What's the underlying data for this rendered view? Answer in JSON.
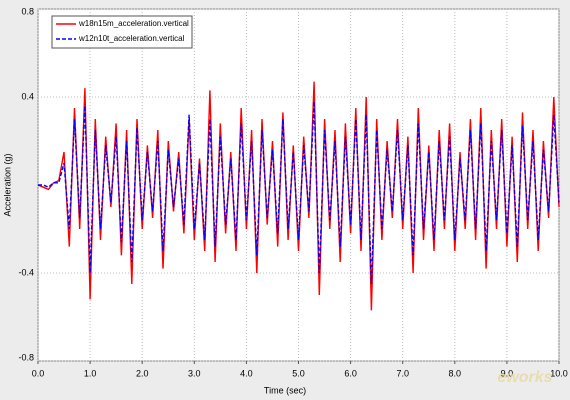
{
  "chart_data": {
    "type": "line",
    "xlabel": "Time (sec)",
    "ylabel": "Acceleration (g)",
    "watermark": "eworks",
    "x": [
      0,
      0.1,
      0.2,
      0.3,
      0.4,
      0.5,
      0.6,
      0.7,
      0.8,
      0.9,
      1,
      1.1,
      1.2,
      1.3,
      1.4,
      1.5,
      1.6,
      1.7,
      1.8,
      1.9,
      2,
      2.1,
      2.2,
      2.3,
      2.4,
      2.5,
      2.6,
      2.7,
      2.8,
      2.9,
      3,
      3.1,
      3.2,
      3.3,
      3.4,
      3.5,
      3.6,
      3.7,
      3.8,
      3.9,
      4,
      4.1,
      4.2,
      4.3,
      4.4,
      4.5,
      4.6,
      4.7,
      4.8,
      4.9,
      5,
      5.1,
      5.2,
      5.3,
      5.4,
      5.5,
      5.6,
      5.7,
      5.8,
      5.9,
      6,
      6.1,
      6.2,
      6.3,
      6.4,
      6.5,
      6.6,
      6.7,
      6.8,
      6.9,
      7,
      7.1,
      7.2,
      7.3,
      7.4,
      7.5,
      7.6,
      7.7,
      7.8,
      7.9,
      8,
      8.1,
      8.2,
      8.3,
      8.4,
      8.5,
      8.6,
      8.7,
      8.8,
      8.9,
      9,
      9.1,
      9.2,
      9.3,
      9.4,
      9.5,
      9.6,
      9.7,
      9.8,
      9.9,
      10
    ],
    "series": [
      {
        "name": "w18n15m_acceleration.vertical",
        "color": "#ff0000",
        "dash": false,
        "values": [
          0,
          -0.01,
          -0.02,
          0.01,
          0.02,
          0.15,
          -0.28,
          0.35,
          -0.2,
          0.44,
          -0.52,
          0.3,
          -0.25,
          0.22,
          -0.1,
          0.28,
          -0.32,
          0.25,
          -0.45,
          0.3,
          -0.2,
          0.18,
          -0.15,
          0.25,
          -0.38,
          0.2,
          -0.12,
          0.15,
          -0.22,
          0.3,
          -0.25,
          0.12,
          -0.3,
          0.43,
          -0.35,
          0.28,
          -0.22,
          0.15,
          -0.3,
          0.35,
          -0.2,
          0.25,
          -0.4,
          0.3,
          -0.18,
          0.2,
          -0.28,
          0.33,
          -0.25,
          0.18,
          -0.3,
          0.22,
          -0.15,
          0.47,
          -0.5,
          0.3,
          -0.2,
          0.25,
          -0.35,
          0.28,
          -0.22,
          0.35,
          -0.3,
          0.4,
          -0.57,
          0.3,
          -0.25,
          0.2,
          -0.15,
          0.3,
          -0.2,
          0.22,
          -0.4,
          0.35,
          -0.25,
          0.18,
          -0.3,
          0.25,
          -0.2,
          0.28,
          -0.3,
          0.15,
          -0.2,
          0.3,
          -0.25,
          0.35,
          -0.38,
          0.25,
          -0.2,
          0.3,
          -0.28,
          0.22,
          -0.35,
          0.33,
          -0.2,
          0.25,
          -0.3,
          0.2,
          -0.15,
          0.4,
          -0.1
        ]
      },
      {
        "name": "w12n10t_acceleration.vertical",
        "color": "#0000ff",
        "dash": true,
        "values": [
          0,
          0,
          -0.01,
          0.01,
          0.01,
          0.1,
          -0.2,
          0.3,
          -0.15,
          0.36,
          -0.4,
          0.25,
          -0.2,
          0.18,
          -0.08,
          0.22,
          -0.26,
          0.2,
          -0.35,
          0.26,
          -0.16,
          0.15,
          -0.12,
          0.2,
          -0.3,
          0.16,
          -0.1,
          0.12,
          -0.18,
          0.32,
          -0.2,
          0.1,
          -0.25,
          0.3,
          -0.28,
          0.22,
          -0.18,
          0.12,
          -0.25,
          0.28,
          -0.16,
          0.2,
          -0.32,
          0.25,
          -0.15,
          0.16,
          -0.22,
          0.3,
          -0.2,
          0.15,
          -0.25,
          0.18,
          -0.12,
          0.38,
          -0.4,
          0.25,
          -0.16,
          0.2,
          -0.28,
          0.22,
          -0.18,
          0.3,
          -0.25,
          0.32,
          -0.45,
          0.25,
          -0.2,
          0.16,
          -0.12,
          0.25,
          -0.16,
          0.18,
          -0.32,
          0.28,
          -0.2,
          0.15,
          -0.25,
          0.2,
          -0.16,
          0.22,
          -0.25,
          0.12,
          -0.16,
          0.25,
          -0.2,
          0.28,
          -0.3,
          0.2,
          -0.16,
          0.25,
          -0.22,
          0.18,
          -0.28,
          0.27,
          -0.16,
          0.2,
          -0.25,
          0.16,
          -0.12,
          0.32,
          -0.08
        ]
      }
    ],
    "xlim": [
      0,
      10
    ],
    "xticks": [
      {
        "value": 0,
        "label": "0.0"
      },
      {
        "value": 1,
        "label": "1.0"
      },
      {
        "value": 2,
        "label": "2.0"
      },
      {
        "value": 3,
        "label": "3.0"
      },
      {
        "value": 4,
        "label": "4.0"
      },
      {
        "value": 5,
        "label": "5.0"
      },
      {
        "value": 6,
        "label": "6.0"
      },
      {
        "value": 7,
        "label": "7.0"
      },
      {
        "value": 8,
        "label": "8.0"
      },
      {
        "value": 9,
        "label": "9.0"
      },
      {
        "value": 10,
        "label": "10.0"
      }
    ],
    "ylim": [
      -0.8,
      0.8
    ],
    "yticks": [
      -0.8,
      -0.4,
      0.4,
      0.8
    ],
    "grid": true
  }
}
